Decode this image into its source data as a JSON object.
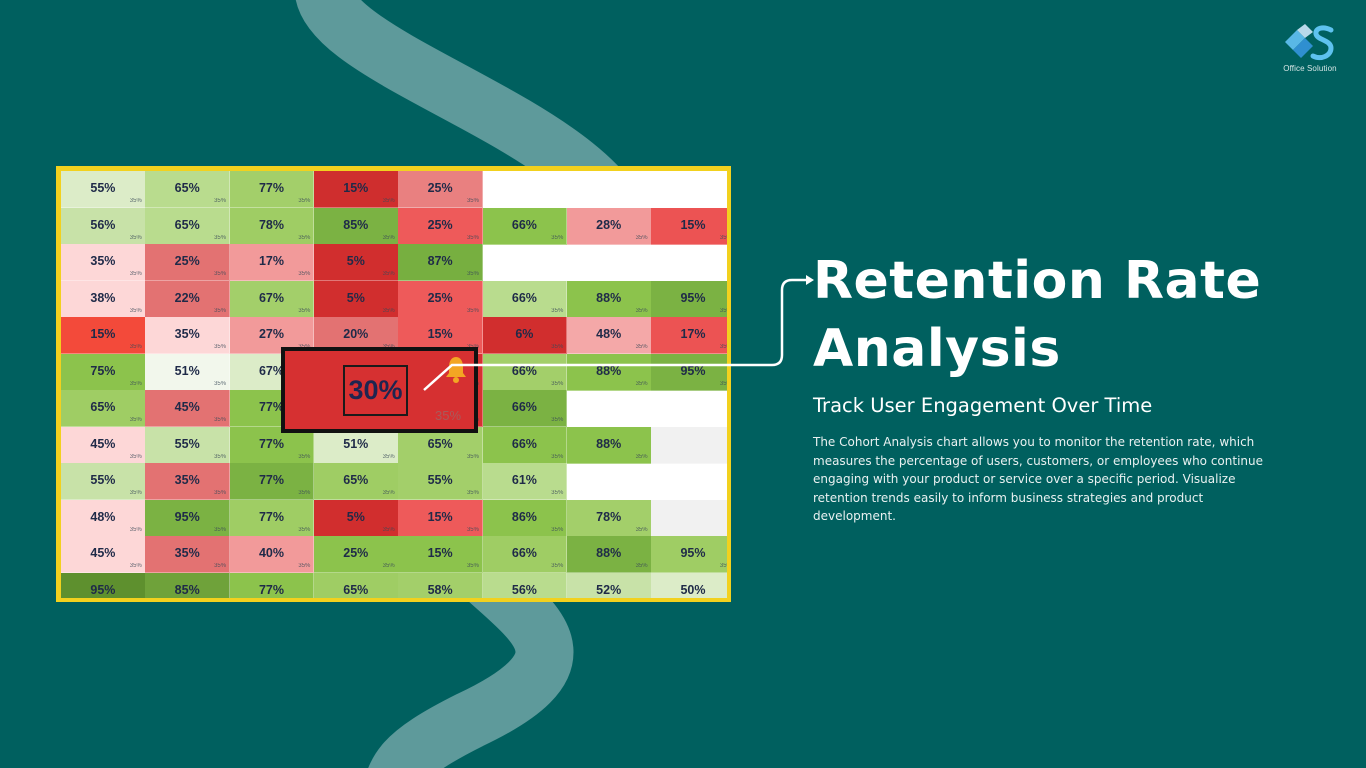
{
  "logo": {
    "caption": "Office Solution"
  },
  "heading": {
    "title": "Retention Rate Analysis",
    "subtitle": "Track User Engagement Over Time",
    "description": "The Cohort Analysis chart allows you to monitor the retention rate, which measures the percentage of users, customers, or employees who continue engaging with your product or service over a specific period. Visualize retention trends easily to inform business strategies and product development."
  },
  "highlight": {
    "value": "30%",
    "secondary": "35%"
  },
  "colors": {
    "background": "#00605f",
    "swirl": "#5e9a9b",
    "frame": "#f2d11e",
    "popup": "#d63031"
  },
  "chart_data": {
    "type": "heatmap",
    "secondary_label": "35%",
    "rows": [
      [
        [
          "55%",
          "#dcecc8"
        ],
        [
          "65%",
          "#b9dc8e"
        ],
        [
          "77%",
          "#a3cf6a"
        ],
        [
          "15%",
          "#cf2e2e"
        ],
        [
          "25%",
          "#e98080"
        ],
        null,
        null,
        null
      ],
      [
        [
          "56%",
          "#c8e2a8"
        ],
        [
          "65%",
          "#b9dc8e"
        ],
        [
          "78%",
          "#9fcd64"
        ],
        [
          "85%",
          "#7bb243"
        ],
        [
          "25%",
          "#ee5a5a"
        ],
        [
          "66%",
          "#8cc34c"
        ],
        [
          "28%",
          "#f29a9a"
        ],
        [
          "15%",
          "#ec5353"
        ]
      ],
      [
        [
          "35%",
          "#fdd7d7"
        ],
        [
          "25%",
          "#e37272"
        ],
        [
          "17%",
          "#f29a9a"
        ],
        [
          "5%",
          "#d12e2e"
        ],
        [
          "87%",
          "#77af40"
        ],
        null,
        null,
        null
      ],
      [
        [
          "38%",
          "#fdd7d7"
        ],
        [
          "22%",
          "#e37272"
        ],
        [
          "67%",
          "#a3cf6a"
        ],
        [
          "5%",
          "#d12e2e"
        ],
        [
          "25%",
          "#ee5a5a"
        ],
        [
          "66%",
          "#b9dc8e"
        ],
        [
          "88%",
          "#8cc34c"
        ],
        [
          "95%",
          "#7bb243"
        ]
      ],
      [
        [
          "15%",
          "#f34a3a"
        ],
        [
          "35%",
          "#fdd7d7"
        ],
        [
          "27%",
          "#f29a9a"
        ],
        [
          "20%",
          "#e37272"
        ],
        [
          "15%",
          "#ee5a5a"
        ],
        [
          "6%",
          "#d12e2e"
        ],
        [
          "48%",
          "#f4a8a8"
        ],
        [
          "17%",
          "#ec5353"
        ]
      ],
      [
        [
          "75%",
          "#8cc34c"
        ],
        [
          "51%",
          "#f2f7ec"
        ],
        [
          "67%",
          "#dcecc8"
        ],
        [
          "30%",
          "#d63031"
        ],
        [
          "30%",
          "#d63031"
        ],
        [
          "66%",
          "#a3cf6a"
        ],
        [
          "88%",
          "#8cc34c"
        ],
        [
          "95%",
          "#7bb243"
        ]
      ],
      [
        [
          "65%",
          "#9fcd64"
        ],
        [
          "45%",
          "#e37272"
        ],
        [
          "77%",
          "#8cc34c"
        ],
        [
          "30%",
          "#d63031"
        ],
        [
          "30%",
          "#d63031"
        ],
        [
          "66%",
          "#7bb243"
        ],
        null,
        null
      ],
      [
        [
          "45%",
          "#fdd7d7"
        ],
        [
          "55%",
          "#c8e2a8"
        ],
        [
          "77%",
          "#8cc34c"
        ],
        [
          "51%",
          "#dcecc8"
        ],
        [
          "65%",
          "#a3cf6a"
        ],
        [
          "66%",
          "#8cc34c"
        ],
        [
          "88%",
          "#8cc34c"
        ],
        [
          "",
          "#f1f1f1"
        ]
      ],
      [
        [
          "55%",
          "#c8e2a8"
        ],
        [
          "35%",
          "#e37272"
        ],
        [
          "77%",
          "#7bb243"
        ],
        [
          "65%",
          "#9fcd64"
        ],
        [
          "55%",
          "#a3cf6a"
        ],
        [
          "61%",
          "#b9dc8e"
        ],
        null,
        null
      ],
      [
        [
          "48%",
          "#fdd7d7"
        ],
        [
          "95%",
          "#7bb243"
        ],
        [
          "77%",
          "#9fcd64"
        ],
        [
          "5%",
          "#d12e2e"
        ],
        [
          "15%",
          "#ee5a5a"
        ],
        [
          "86%",
          "#8cc34c"
        ],
        [
          "78%",
          "#a3cf6a"
        ],
        [
          "",
          "#f1f1f1"
        ]
      ],
      [
        [
          "45%",
          "#fdd7d7"
        ],
        [
          "35%",
          "#e37272"
        ],
        [
          "40%",
          "#f29a9a"
        ],
        [
          "25%",
          "#8cc34c"
        ],
        [
          "15%",
          "#8cc34c"
        ],
        [
          "66%",
          "#9fcd64"
        ],
        [
          "88%",
          "#7bb243"
        ],
        [
          "95%",
          "#9fcd64"
        ]
      ],
      [
        [
          "95%",
          "#5e902e"
        ],
        [
          "85%",
          "#6fa23a"
        ],
        [
          "77%",
          "#8cc34c"
        ],
        [
          "65%",
          "#9fcd64"
        ],
        [
          "58%",
          "#a3cf6a"
        ],
        [
          "56%",
          "#b9dc8e"
        ],
        [
          "52%",
          "#c8e2a8"
        ],
        [
          "50%",
          "#dcecc8"
        ]
      ]
    ]
  }
}
